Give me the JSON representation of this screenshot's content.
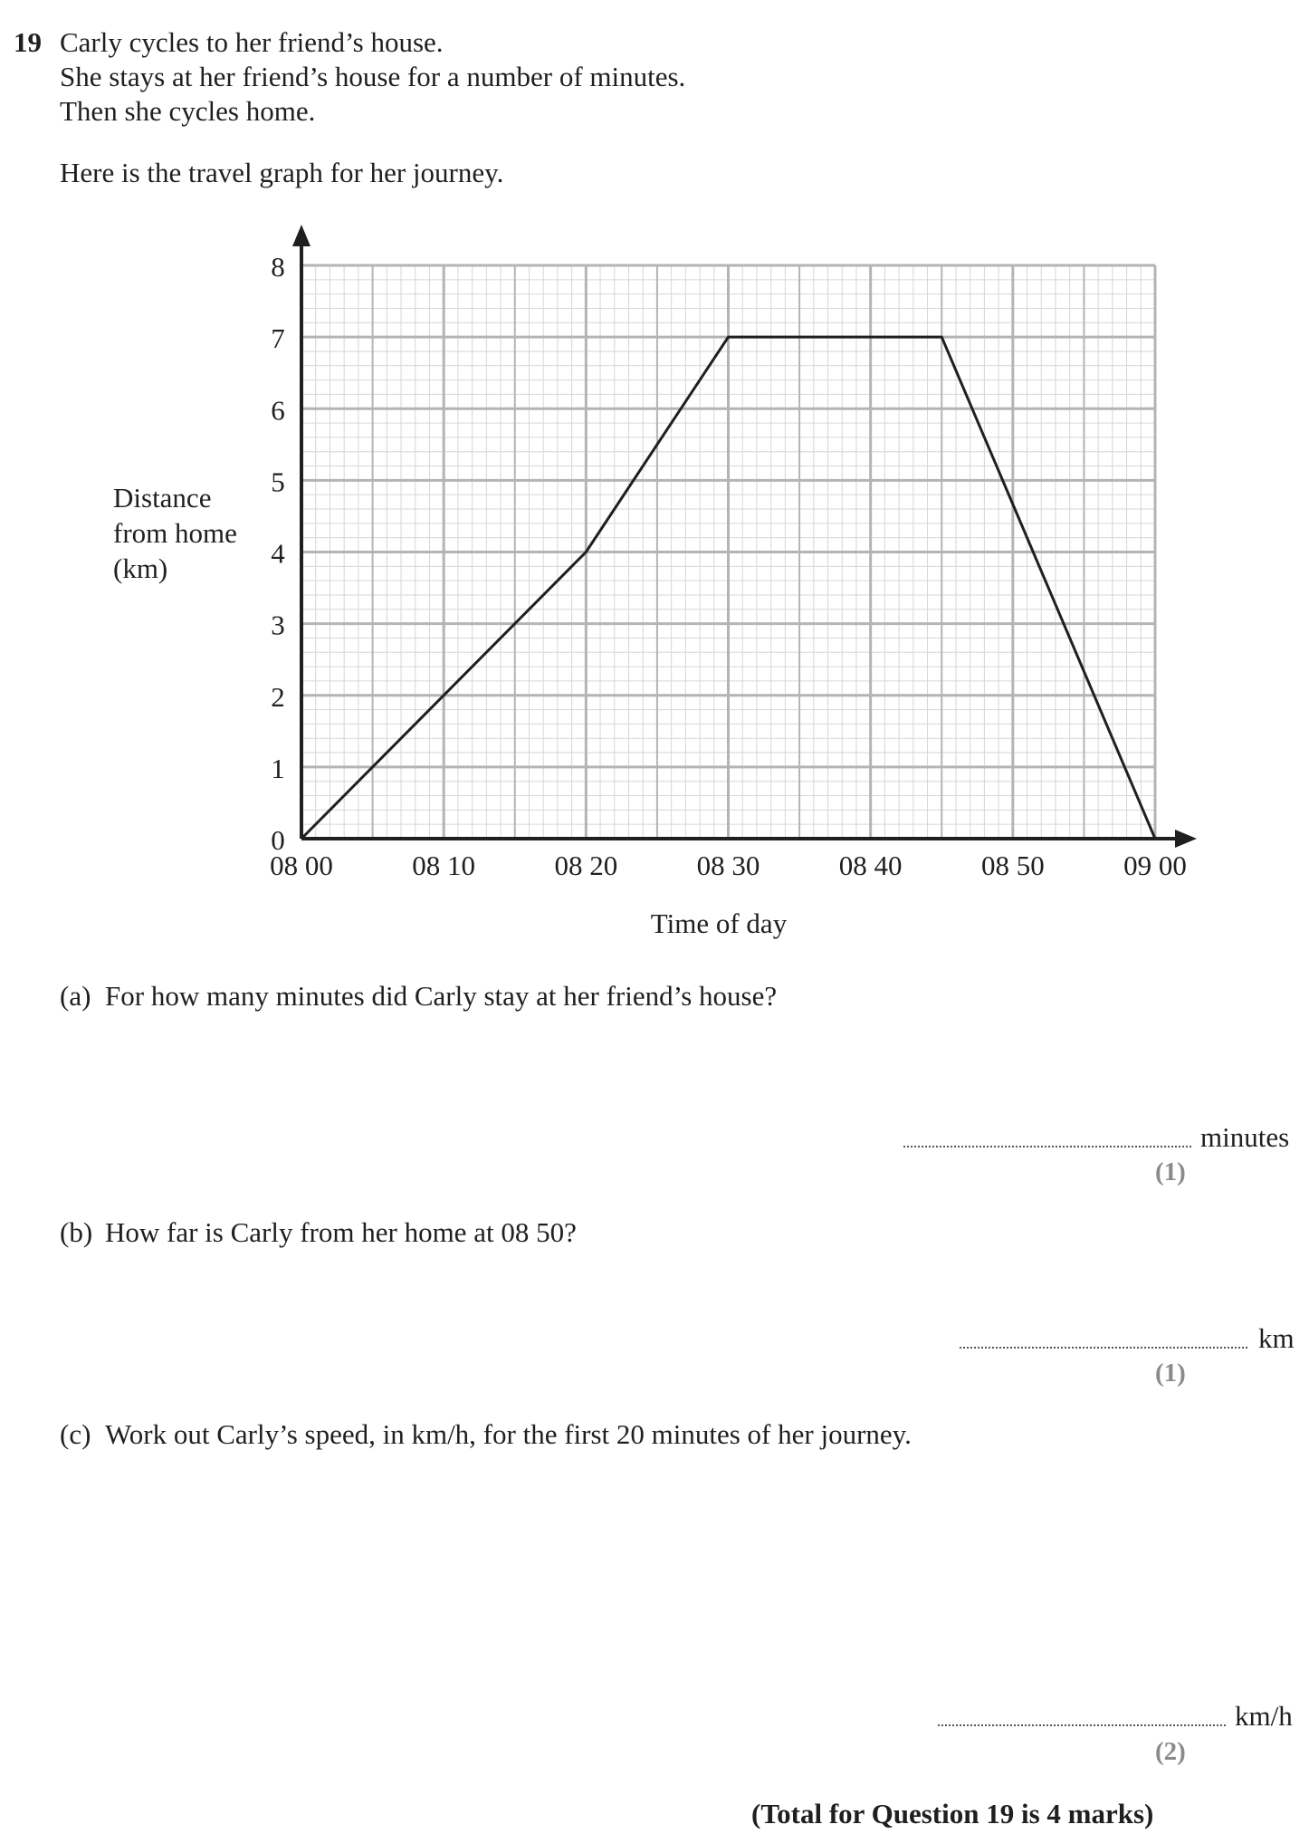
{
  "question": {
    "number": "19",
    "intro_lines": [
      "Carly cycles to her friend’s house.",
      "She stays at her friend’s house for a number of minutes.",
      "Then she cycles home."
    ],
    "graph_intro": "Here is the travel graph for her journey."
  },
  "chart_data": {
    "type": "line",
    "title": "",
    "xlabel": "Time of day",
    "ylabel_lines": [
      "Distance",
      "from home",
      "(km)"
    ],
    "x_tick_labels": [
      "08 00",
      "08 10",
      "08 20",
      "08 30",
      "08 40",
      "08 50",
      "09 00"
    ],
    "x_ticks_minutes_after_0800": [
      0,
      10,
      20,
      30,
      40,
      50,
      60
    ],
    "y_tick_labels": [
      "0",
      "1",
      "2",
      "3",
      "4",
      "5",
      "6",
      "7",
      "8"
    ],
    "xlim_minutes_after_0800": [
      0,
      60
    ],
    "ylim": [
      0,
      8
    ],
    "grid": true,
    "series": [
      {
        "x": [
          "08 00",
          "08 20",
          "08 30",
          "08 45",
          "09 00"
        ],
        "x_minutes_after_0800": [
          0,
          20,
          30,
          45,
          60
        ],
        "y": [
          0,
          4,
          7,
          7,
          0
        ]
      }
    ]
  },
  "parts": [
    {
      "label": "(a)",
      "text": "For how many minutes did Carly stay at her friend’s house?",
      "unit": "minutes",
      "marks": "(1)"
    },
    {
      "label": "(b)",
      "text": "How far is Carly from her home at 08 50?",
      "unit": "km",
      "marks": "(1)"
    },
    {
      "label": "(c)",
      "text": "Work out Carly’s speed, in km/h, for the first 20 minutes of her journey.",
      "unit": "km/h",
      "marks": "(2)"
    }
  ],
  "total": "(Total for Question 19 is 4 marks)",
  "colors": {
    "grid_minor": "#d6d6d6",
    "grid_major": "#b4b4b4",
    "axis": "#1f1f1f",
    "line": "#1f1f1f",
    "marks_grey": "#8a8a8a"
  }
}
